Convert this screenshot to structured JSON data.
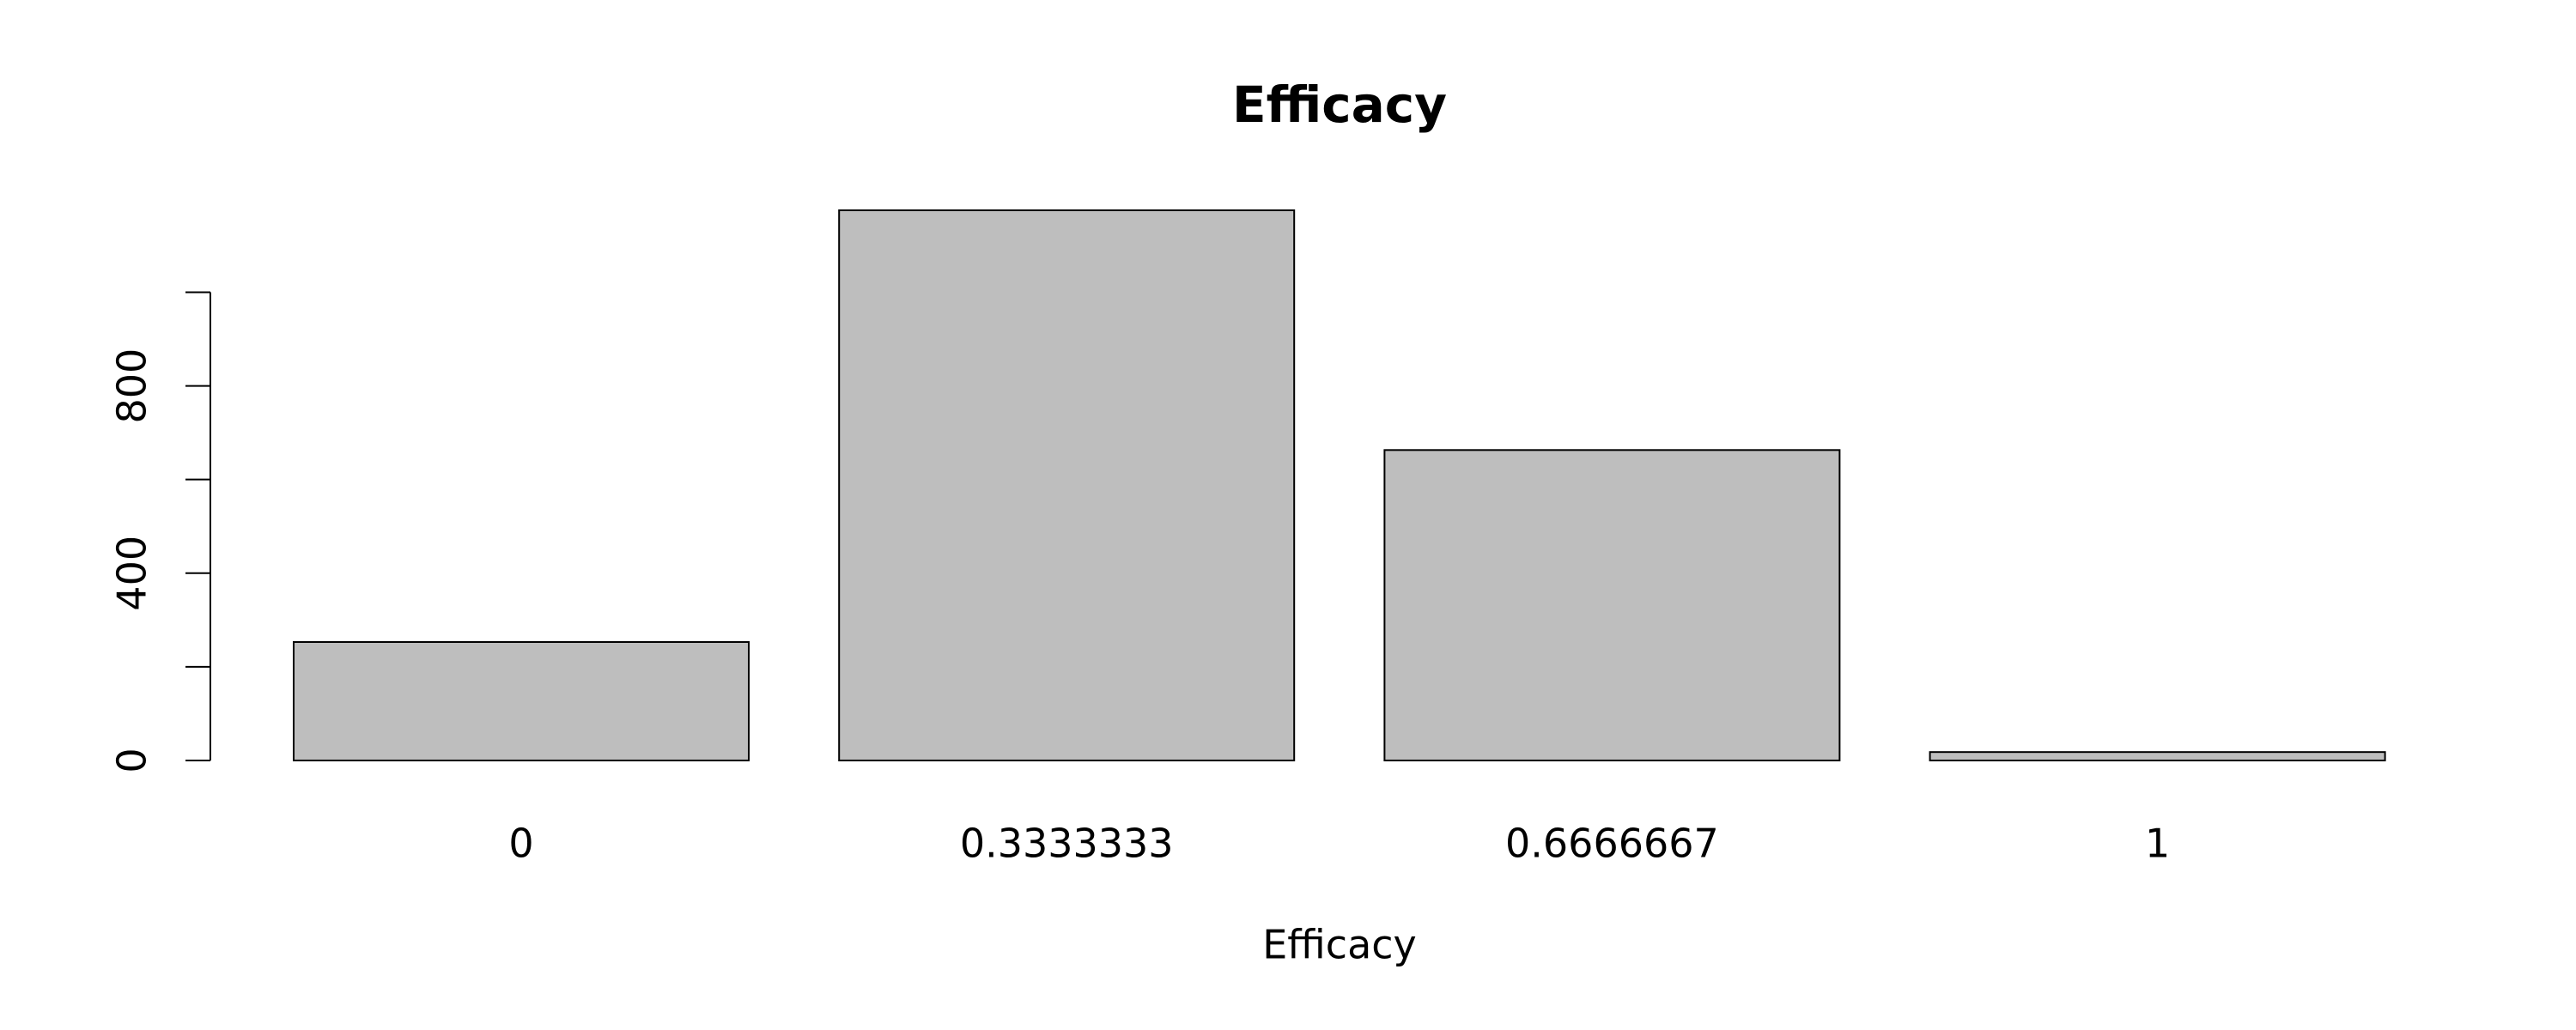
{
  "chart_data": {
    "type": "bar",
    "title": "Efficacy",
    "x_label": "Efficacy",
    "categories": [
      "0",
      "0.3333333",
      "0.6666667",
      "1"
    ],
    "values": [
      253,
      1175,
      663,
      18
    ],
    "color": "#bebebe",
    "ylim": [
      0,
      1175
    ],
    "yticks": [
      0,
      {
        "value": 200,
        "label": null
      },
      400,
      {
        "value": 600,
        "label": null
      },
      800,
      {
        "value": 1000,
        "label": null
      }
    ]
  }
}
